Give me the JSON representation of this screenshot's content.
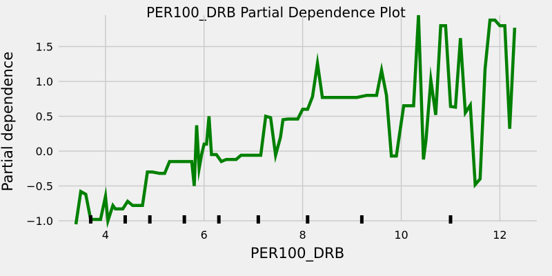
{
  "chart_data": {
    "type": "line",
    "title": "PER100_DRB Partial Dependence Plot",
    "xlabel": "PER100_DRB",
    "ylabel": "Partial dependence",
    "xlim": [
      3.05,
      12.75
    ],
    "ylim": [
      -1.0,
      1.95
    ],
    "xticks": [
      4,
      6,
      8,
      10,
      12
    ],
    "yticks": [
      -1.0,
      -0.5,
      0.0,
      0.5,
      1.0,
      1.5
    ],
    "grid": true,
    "series": [
      {
        "color": "#008000",
        "x": [
          3.4,
          3.5,
          3.6,
          3.7,
          3.8,
          3.9,
          4.0,
          4.05,
          4.15,
          4.2,
          4.3,
          4.35,
          4.45,
          4.55,
          4.65,
          4.75,
          4.85,
          4.95,
          5.1,
          5.2,
          5.3,
          5.45,
          5.55,
          5.65,
          5.75,
          5.8,
          5.85,
          5.9,
          5.95,
          6.0,
          6.05,
          6.1,
          6.15,
          6.25,
          6.35,
          6.45,
          6.55,
          6.65,
          6.75,
          6.85,
          6.95,
          7.05,
          7.15,
          7.25,
          7.35,
          7.45,
          7.55,
          7.6,
          7.7,
          7.8,
          7.9,
          8.0,
          8.1,
          8.2,
          8.3,
          8.4,
          8.5,
          8.6,
          8.7,
          8.8,
          8.9,
          9.1,
          9.3,
          9.4,
          9.5,
          9.6,
          9.7,
          9.8,
          9.9,
          10.05,
          10.15,
          10.25,
          10.35,
          10.45,
          10.5,
          10.6,
          10.7,
          10.8,
          10.9,
          11.0,
          11.1,
          11.2,
          11.3,
          11.4,
          11.5,
          11.6,
          11.7,
          11.8,
          11.9,
          12.0,
          12.1,
          12.2,
          12.3
        ],
        "y": [
          -1.05,
          -0.58,
          -0.62,
          -0.98,
          -0.98,
          -0.98,
          -0.65,
          -1.0,
          -0.78,
          -0.83,
          -0.83,
          -0.83,
          -0.72,
          -0.78,
          -0.78,
          -0.78,
          -0.3,
          -0.3,
          -0.32,
          -0.32,
          -0.15,
          -0.15,
          -0.15,
          -0.15,
          -0.15,
          -0.5,
          0.37,
          -0.25,
          -0.05,
          0.1,
          0.1,
          0.5,
          -0.05,
          -0.05,
          -0.15,
          -0.12,
          -0.12,
          -0.12,
          -0.06,
          -0.06,
          -0.06,
          -0.06,
          -0.06,
          0.5,
          0.48,
          -0.06,
          0.2,
          0.45,
          0.46,
          0.46,
          0.46,
          0.6,
          0.6,
          0.78,
          1.26,
          0.77,
          0.77,
          0.77,
          0.77,
          0.77,
          0.77,
          0.77,
          0.8,
          0.8,
          0.8,
          1.16,
          0.8,
          -0.07,
          -0.07,
          0.65,
          0.65,
          0.65,
          1.95,
          -0.12,
          0.15,
          1.02,
          0.52,
          1.8,
          1.8,
          0.64,
          0.63,
          1.62,
          0.55,
          0.66,
          -0.48,
          -0.4,
          1.18,
          1.88,
          1.88,
          1.8,
          1.8,
          0.32,
          1.77
        ]
      }
    ],
    "rug_x": [
      3.7,
      4.4,
      4.9,
      5.6,
      6.3,
      7.1,
      8.1,
      9.2,
      11.0
    ]
  }
}
